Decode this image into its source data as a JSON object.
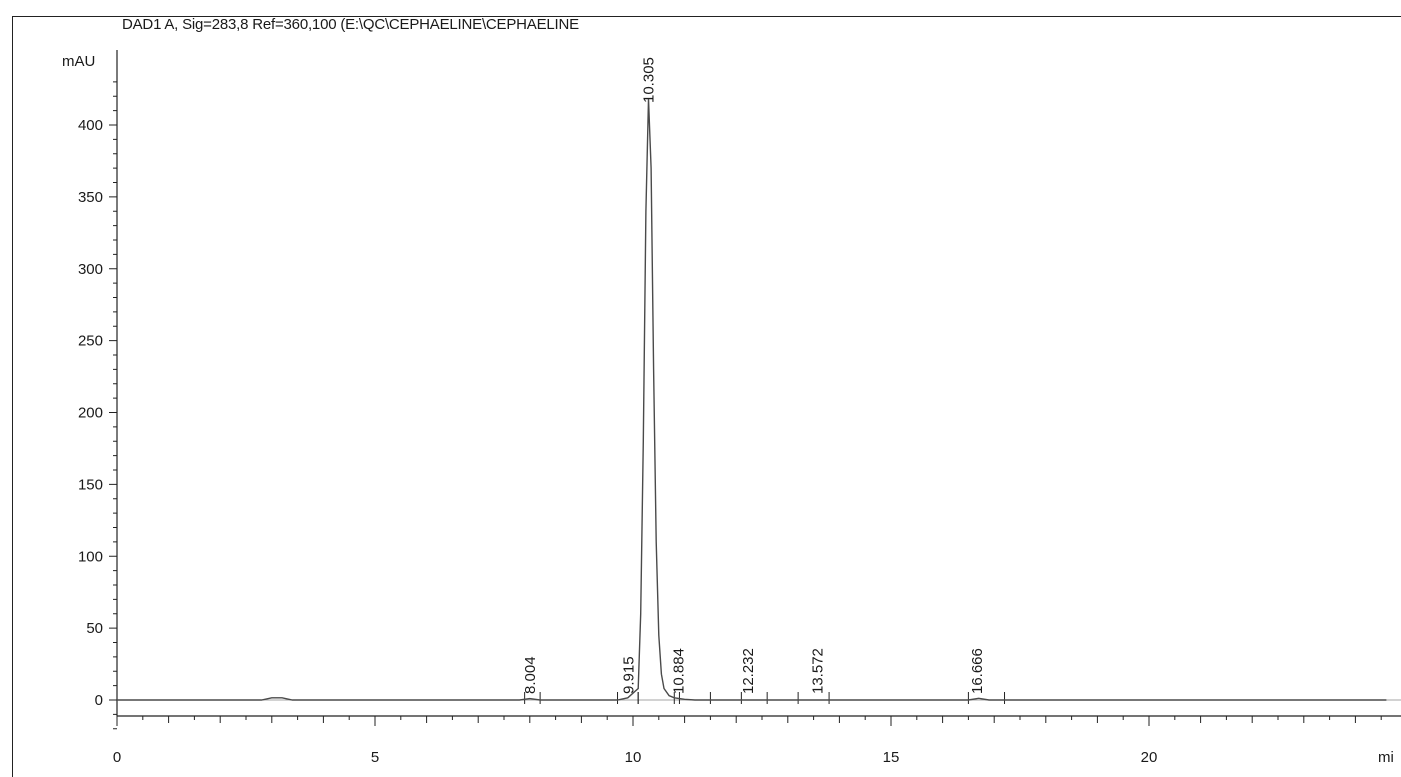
{
  "chart_data": {
    "type": "line",
    "title": "DAD1 A, Sig=283,8 Ref=360,100 (E:\\QC\\CEPHAELINE\\CEPHAELINE",
    "ylabel": "mAU",
    "xlabel": "mi",
    "xlim": [
      0,
      24.6
    ],
    "ylim": [
      -22,
      445
    ],
    "x_ticks": [
      0,
      5,
      10,
      15,
      20
    ],
    "y_ticks": [
      0,
      50,
      100,
      150,
      200,
      250,
      300,
      350,
      400
    ],
    "grid": false,
    "series": [
      {
        "x": [
          0,
          2.8,
          3.0,
          3.2,
          3.4,
          7.8,
          8.0,
          8.2,
          9.7,
          9.9,
          10.1,
          10.15,
          10.2,
          10.25,
          10.3,
          10.35,
          10.4,
          10.45,
          10.5,
          10.55,
          10.6,
          10.7,
          10.8,
          10.9,
          11.0,
          11.2,
          12.2,
          13.6,
          16.5,
          16.7,
          16.9,
          24.6
        ],
        "y": [
          0,
          0,
          1.5,
          1.5,
          0,
          0,
          1,
          0,
          0,
          1.5,
          8,
          60,
          180,
          340,
          418,
          370,
          230,
          110,
          45,
          18,
          8,
          3,
          1.5,
          1,
          0.5,
          0,
          0,
          0,
          0,
          1.2,
          0,
          0
        ]
      }
    ],
    "peaks": [
      {
        "rt": 8.004,
        "label": "8.004",
        "start": 7.9,
        "end": 8.2
      },
      {
        "rt": 9.915,
        "label": "9.915",
        "start": 9.7,
        "end": 10.1
      },
      {
        "rt": 10.305,
        "label": "10.305",
        "start": 10.1,
        "end": 10.9
      },
      {
        "rt": 10.884,
        "label": "10.884",
        "start": 10.8,
        "end": 11.5
      },
      {
        "rt": 12.232,
        "label": "12.232",
        "start": 12.1,
        "end": 12.6
      },
      {
        "rt": 13.572,
        "label": "13.572",
        "start": 13.2,
        "end": 13.8
      },
      {
        "rt": 16.666,
        "label": "16.666",
        "start": 16.5,
        "end": 17.2
      }
    ],
    "colors": {
      "trace": "#4a4a4a",
      "axis": "#222222"
    }
  }
}
